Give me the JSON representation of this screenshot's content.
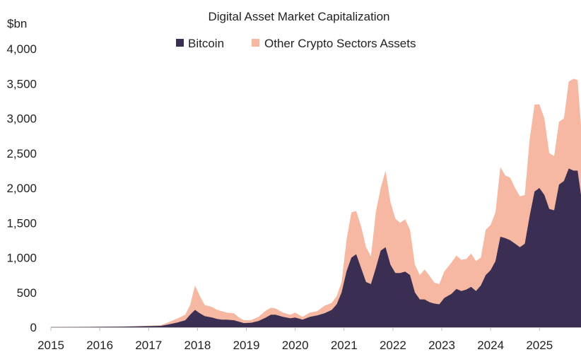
{
  "chart_data": {
    "type": "area",
    "stacked": true,
    "title": "Digital Asset Market Capitalization",
    "ylabel": "$bn",
    "xlabel": "",
    "ylim": [
      0,
      4000
    ],
    "y_ticks": [
      0,
      500,
      1000,
      1500,
      2000,
      2500,
      3000,
      3500,
      4000
    ],
    "y_tick_labels": [
      "0",
      "500",
      "1,000",
      "1,500",
      "2,000",
      "2,500",
      "3,000",
      "3,500",
      "4,000"
    ],
    "x_ticks": [
      2015,
      2016,
      2017,
      2018,
      2019,
      2020,
      2021,
      2022,
      2023,
      2024,
      2025
    ],
    "x_tick_labels": [
      "2015",
      "2016",
      "2017",
      "2018",
      "2019",
      "2020",
      "2021",
      "2022",
      "2023",
      "2024",
      "2025"
    ],
    "xlim": [
      2015.0,
      2025.85
    ],
    "legend_position": "top-center",
    "series": [
      {
        "name": "Bitcoin",
        "color": "#3a2f52",
        "points": [
          [
            2015.0,
            3
          ],
          [
            2015.5,
            4
          ],
          [
            2016.0,
            6
          ],
          [
            2016.5,
            9
          ],
          [
            2017.0,
            16
          ],
          [
            2017.25,
            20
          ],
          [
            2017.4,
            40
          ],
          [
            2017.6,
            70
          ],
          [
            2017.75,
            100
          ],
          [
            2017.85,
            180
          ],
          [
            2017.95,
            250
          ],
          [
            2018.05,
            200
          ],
          [
            2018.15,
            160
          ],
          [
            2018.3,
            140
          ],
          [
            2018.4,
            120
          ],
          [
            2018.5,
            110
          ],
          [
            2018.6,
            110
          ],
          [
            2018.75,
            100
          ],
          [
            2018.85,
            80
          ],
          [
            2018.95,
            60
          ],
          [
            2019.1,
            65
          ],
          [
            2019.25,
            90
          ],
          [
            2019.4,
            140
          ],
          [
            2019.5,
            180
          ],
          [
            2019.6,
            180
          ],
          [
            2019.75,
            150
          ],
          [
            2019.9,
            130
          ],
          [
            2020.0,
            140
          ],
          [
            2020.15,
            110
          ],
          [
            2020.3,
            150
          ],
          [
            2020.45,
            170
          ],
          [
            2020.6,
            200
          ],
          [
            2020.75,
            250
          ],
          [
            2020.85,
            330
          ],
          [
            2020.95,
            500
          ],
          [
            2021.05,
            800
          ],
          [
            2021.15,
            1000
          ],
          [
            2021.25,
            1050
          ],
          [
            2021.35,
            850
          ],
          [
            2021.45,
            650
          ],
          [
            2021.55,
            620
          ],
          [
            2021.65,
            850
          ],
          [
            2021.75,
            1100
          ],
          [
            2021.85,
            1150
          ],
          [
            2021.95,
            900
          ],
          [
            2022.05,
            780
          ],
          [
            2022.15,
            780
          ],
          [
            2022.25,
            800
          ],
          [
            2022.35,
            750
          ],
          [
            2022.45,
            500
          ],
          [
            2022.55,
            400
          ],
          [
            2022.65,
            400
          ],
          [
            2022.75,
            360
          ],
          [
            2022.85,
            340
          ],
          [
            2022.95,
            330
          ],
          [
            2023.05,
            420
          ],
          [
            2023.2,
            480
          ],
          [
            2023.3,
            550
          ],
          [
            2023.4,
            520
          ],
          [
            2023.5,
            540
          ],
          [
            2023.6,
            580
          ],
          [
            2023.7,
            520
          ],
          [
            2023.8,
            600
          ],
          [
            2023.9,
            750
          ],
          [
            2024.0,
            820
          ],
          [
            2024.1,
            950
          ],
          [
            2024.2,
            1300
          ],
          [
            2024.3,
            1280
          ],
          [
            2024.4,
            1250
          ],
          [
            2024.5,
            1200
          ],
          [
            2024.6,
            1150
          ],
          [
            2024.7,
            1200
          ],
          [
            2024.8,
            1600
          ],
          [
            2024.9,
            1950
          ],
          [
            2025.0,
            2000
          ],
          [
            2025.1,
            1900
          ],
          [
            2025.2,
            1700
          ],
          [
            2025.3,
            1680
          ],
          [
            2025.4,
            2050
          ],
          [
            2025.5,
            2100
          ],
          [
            2025.6,
            2280
          ],
          [
            2025.7,
            2250
          ],
          [
            2025.78,
            2250
          ],
          [
            2025.85,
            1900
          ]
        ]
      },
      {
        "name": "Other Crypto Sectors Assets",
        "color": "#f6b8a2",
        "points": [
          [
            2015.0,
            1
          ],
          [
            2015.5,
            1
          ],
          [
            2016.0,
            2
          ],
          [
            2016.5,
            3
          ],
          [
            2017.0,
            5
          ],
          [
            2017.25,
            10
          ],
          [
            2017.4,
            30
          ],
          [
            2017.6,
            60
          ],
          [
            2017.75,
            80
          ],
          [
            2017.85,
            140
          ],
          [
            2017.95,
            350
          ],
          [
            2018.05,
            250
          ],
          [
            2018.15,
            160
          ],
          [
            2018.3,
            150
          ],
          [
            2018.4,
            130
          ],
          [
            2018.5,
            120
          ],
          [
            2018.6,
            100
          ],
          [
            2018.75,
            100
          ],
          [
            2018.85,
            60
          ],
          [
            2018.95,
            40
          ],
          [
            2019.1,
            40
          ],
          [
            2019.25,
            60
          ],
          [
            2019.4,
            100
          ],
          [
            2019.5,
            100
          ],
          [
            2019.6,
            90
          ],
          [
            2019.75,
            60
          ],
          [
            2019.9,
            50
          ],
          [
            2020.0,
            70
          ],
          [
            2020.15,
            40
          ],
          [
            2020.3,
            60
          ],
          [
            2020.45,
            60
          ],
          [
            2020.6,
            110
          ],
          [
            2020.75,
            100
          ],
          [
            2020.85,
            120
          ],
          [
            2020.95,
            150
          ],
          [
            2021.05,
            450
          ],
          [
            2021.15,
            650
          ],
          [
            2021.25,
            620
          ],
          [
            2021.35,
            600
          ],
          [
            2021.45,
            500
          ],
          [
            2021.55,
            400
          ],
          [
            2021.65,
            800
          ],
          [
            2021.75,
            900
          ],
          [
            2021.85,
            1100
          ],
          [
            2021.95,
            900
          ],
          [
            2022.05,
            780
          ],
          [
            2022.15,
            720
          ],
          [
            2022.25,
            750
          ],
          [
            2022.35,
            650
          ],
          [
            2022.45,
            400
          ],
          [
            2022.55,
            350
          ],
          [
            2022.65,
            430
          ],
          [
            2022.75,
            380
          ],
          [
            2022.85,
            300
          ],
          [
            2022.95,
            290
          ],
          [
            2023.05,
            380
          ],
          [
            2023.2,
            450
          ],
          [
            2023.3,
            480
          ],
          [
            2023.4,
            450
          ],
          [
            2023.5,
            440
          ],
          [
            2023.6,
            480
          ],
          [
            2023.7,
            430
          ],
          [
            2023.8,
            400
          ],
          [
            2023.9,
            650
          ],
          [
            2024.0,
            650
          ],
          [
            2024.1,
            700
          ],
          [
            2024.2,
            1000
          ],
          [
            2024.3,
            900
          ],
          [
            2024.4,
            900
          ],
          [
            2024.5,
            800
          ],
          [
            2024.6,
            730
          ],
          [
            2024.7,
            700
          ],
          [
            2024.8,
            1100
          ],
          [
            2024.9,
            1250
          ],
          [
            2025.0,
            1200
          ],
          [
            2025.1,
            1100
          ],
          [
            2025.2,
            800
          ],
          [
            2025.3,
            780
          ],
          [
            2025.4,
            900
          ],
          [
            2025.5,
            900
          ],
          [
            2025.6,
            1250
          ],
          [
            2025.7,
            1320
          ],
          [
            2025.78,
            1300
          ],
          [
            2025.85,
            1000
          ]
        ]
      }
    ]
  }
}
